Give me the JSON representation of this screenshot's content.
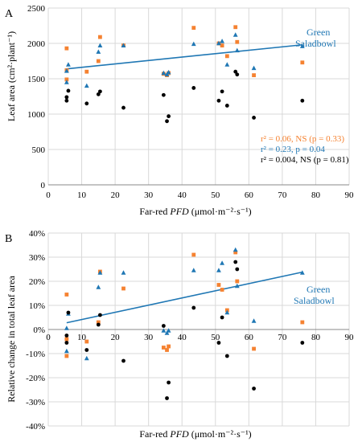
{
  "colors": {
    "series_a": "#f58231",
    "series_b": "#1f77b4",
    "series_c": "#000000",
    "trend": "#1f77b4",
    "grid": "#d9d9d9"
  },
  "chart_data": [
    {
      "panel": "A",
      "type": "scatter",
      "xlabel_prefix": "Far-red ",
      "xlabel_italic": "PFD",
      "xlabel_suffix": " (μmol·m⁻²·s⁻¹)",
      "ylabel": "Leaf area (cm²·plant⁻¹)",
      "xlim": [
        0,
        90
      ],
      "ylim": [
        0,
        2500
      ],
      "xticks": [
        0,
        10,
        20,
        30,
        40,
        50,
        60,
        70,
        80,
        90
      ],
      "yticks": [
        0,
        500,
        1000,
        1500,
        2000,
        2500
      ],
      "xtick_labels": [
        "0",
        "10",
        "20",
        "30",
        "40",
        "50",
        "60",
        "70",
        "80",
        "90"
      ],
      "ytick_labels": [
        "0",
        "500",
        "1000",
        "1500",
        "2000",
        "2500"
      ],
      "grid": true,
      "series": [
        {
          "color_key": "series_a",
          "marker": "square",
          "points": [
            [
              5.5,
              1930
            ],
            [
              5.5,
              1620
            ],
            [
              5.5,
              1490
            ],
            [
              11.5,
              1600
            ],
            [
              15,
              1750
            ],
            [
              15.5,
              2090
            ],
            [
              22.5,
              1970
            ],
            [
              34.5,
              1570
            ],
            [
              35.5,
              1550
            ],
            [
              36,
              1580
            ],
            [
              43.5,
              2220
            ],
            [
              51,
              2000
            ],
            [
              52,
              1970
            ],
            [
              53.5,
              1820
            ],
            [
              56,
              2230
            ],
            [
              56.5,
              2020
            ],
            [
              61.5,
              1550
            ],
            [
              76,
              1730
            ]
          ]
        },
        {
          "color_key": "series_b",
          "marker": "triangle",
          "points": [
            [
              5.5,
              1610
            ],
            [
              5.5,
              1450
            ],
            [
              6,
              1700
            ],
            [
              11.5,
              1400
            ],
            [
              15,
              1880
            ],
            [
              15.5,
              1970
            ],
            [
              22.5,
              1970
            ],
            [
              34.5,
              1580
            ],
            [
              35.5,
              1560
            ],
            [
              36,
              1590
            ],
            [
              43.5,
              1990
            ],
            [
              51,
              2000
            ],
            [
              52,
              2030
            ],
            [
              53.5,
              1700
            ],
            [
              56,
              2120
            ],
            [
              56.5,
              1900
            ],
            [
              61.5,
              1650
            ],
            [
              76,
              1960
            ]
          ]
        },
        {
          "color_key": "series_c",
          "marker": "circle",
          "points": [
            [
              5.5,
              1240
            ],
            [
              5.5,
              1190
            ],
            [
              6,
              1330
            ],
            [
              11.5,
              1150
            ],
            [
              15,
              1280
            ],
            [
              15.5,
              1320
            ],
            [
              22.5,
              1090
            ],
            [
              34.5,
              1270
            ],
            [
              35.5,
              900
            ],
            [
              36,
              970
            ],
            [
              43.5,
              1370
            ],
            [
              51,
              1190
            ],
            [
              52,
              1320
            ],
            [
              53.5,
              1120
            ],
            [
              56,
              1600
            ],
            [
              56.5,
              1560
            ],
            [
              61.5,
              950
            ],
            [
              76,
              1190
            ]
          ]
        }
      ],
      "trendline": {
        "label_line1": "Green",
        "label_line2": "Saladbowl",
        "x": [
          5.5,
          76
        ],
        "y": [
          1640,
          1980
        ]
      },
      "stats": [
        {
          "color_key": "series_a",
          "text": "r² = 0.06, NS (p = 0.33)"
        },
        {
          "color_key": "series_b",
          "text": "r² = 0.23, p = 0.04"
        },
        {
          "color_key": "series_c",
          "text": "r² = 0.004, NS (p = 0.81)"
        }
      ]
    },
    {
      "panel": "B",
      "type": "scatter",
      "xlabel_prefix": "Far-red ",
      "xlabel_italic": "PFD",
      "xlabel_suffix": " (μmol·m⁻²·s⁻¹)",
      "ylabel": "Relative change in total leaf area",
      "xlim": [
        0,
        90
      ],
      "ylim": [
        -40,
        40
      ],
      "xticks": [
        0,
        10,
        20,
        30,
        40,
        50,
        60,
        70,
        80,
        90
      ],
      "yticks": [
        -40,
        -30,
        -20,
        -10,
        0,
        10,
        20,
        30,
        40
      ],
      "xtick_labels": [
        "0",
        "10",
        "20",
        "30",
        "40",
        "50",
        "60",
        "70",
        "80",
        "90"
      ],
      "ytick_labels": [
        "-40%",
        "-30%",
        "-20%",
        "-10%",
        "0%",
        "10%",
        "20%",
        "30%",
        "40%"
      ],
      "grid": true,
      "series": [
        {
          "color_key": "series_a",
          "marker": "square",
          "points": [
            [
              5.5,
              14.5
            ],
            [
              5.5,
              -4
            ],
            [
              5.5,
              -11
            ],
            [
              11.5,
              -5
            ],
            [
              15,
              3
            ],
            [
              15.5,
              24
            ],
            [
              22.5,
              17
            ],
            [
              34.5,
              -7.5
            ],
            [
              35.5,
              -8.5
            ],
            [
              36,
              -7
            ],
            [
              43.5,
              31
            ],
            [
              51,
              18.5
            ],
            [
              52,
              16.5
            ],
            [
              53.5,
              8
            ],
            [
              56,
              32
            ],
            [
              56.5,
              20
            ],
            [
              61.5,
              -8
            ],
            [
              76,
              3
            ]
          ]
        },
        {
          "color_key": "series_b",
          "marker": "triangle",
          "points": [
            [
              5.5,
              0.5
            ],
            [
              5.5,
              -9
            ],
            [
              6,
              6.5
            ],
            [
              11.5,
              -12
            ],
            [
              15,
              17.5
            ],
            [
              15.5,
              23.5
            ],
            [
              22.5,
              23.5
            ],
            [
              34.5,
              -0.5
            ],
            [
              35.5,
              -1.5
            ],
            [
              36,
              -0.5
            ],
            [
              43.5,
              24.5
            ],
            [
              51,
              24.5
            ],
            [
              52,
              27.5
            ],
            [
              53.5,
              7
            ],
            [
              56,
              33
            ],
            [
              56.5,
              18
            ],
            [
              61.5,
              3.5
            ],
            [
              76,
              23.5
            ]
          ]
        },
        {
          "color_key": "series_c",
          "marker": "circle",
          "points": [
            [
              5.5,
              -2.5
            ],
            [
              5.5,
              -5.5
            ],
            [
              6,
              7
            ],
            [
              11.5,
              -8.5
            ],
            [
              15,
              2
            ],
            [
              15.5,
              6
            ],
            [
              22.5,
              -13
            ],
            [
              34.5,
              1.5
            ],
            [
              35.5,
              -28.5
            ],
            [
              36,
              -22
            ],
            [
              43.5,
              9
            ],
            [
              51,
              -5.5
            ],
            [
              52,
              5
            ],
            [
              53.5,
              -11
            ],
            [
              56,
              28
            ],
            [
              56.5,
              25
            ],
            [
              61.5,
              -24.5
            ],
            [
              76,
              -5.5
            ]
          ]
        }
      ],
      "trendline": {
        "label_line1": "Green",
        "label_line2": "Saladbowl",
        "x": [
          5.5,
          76
        ],
        "y": [
          2.8,
          23.8
        ]
      },
      "stats": []
    }
  ]
}
